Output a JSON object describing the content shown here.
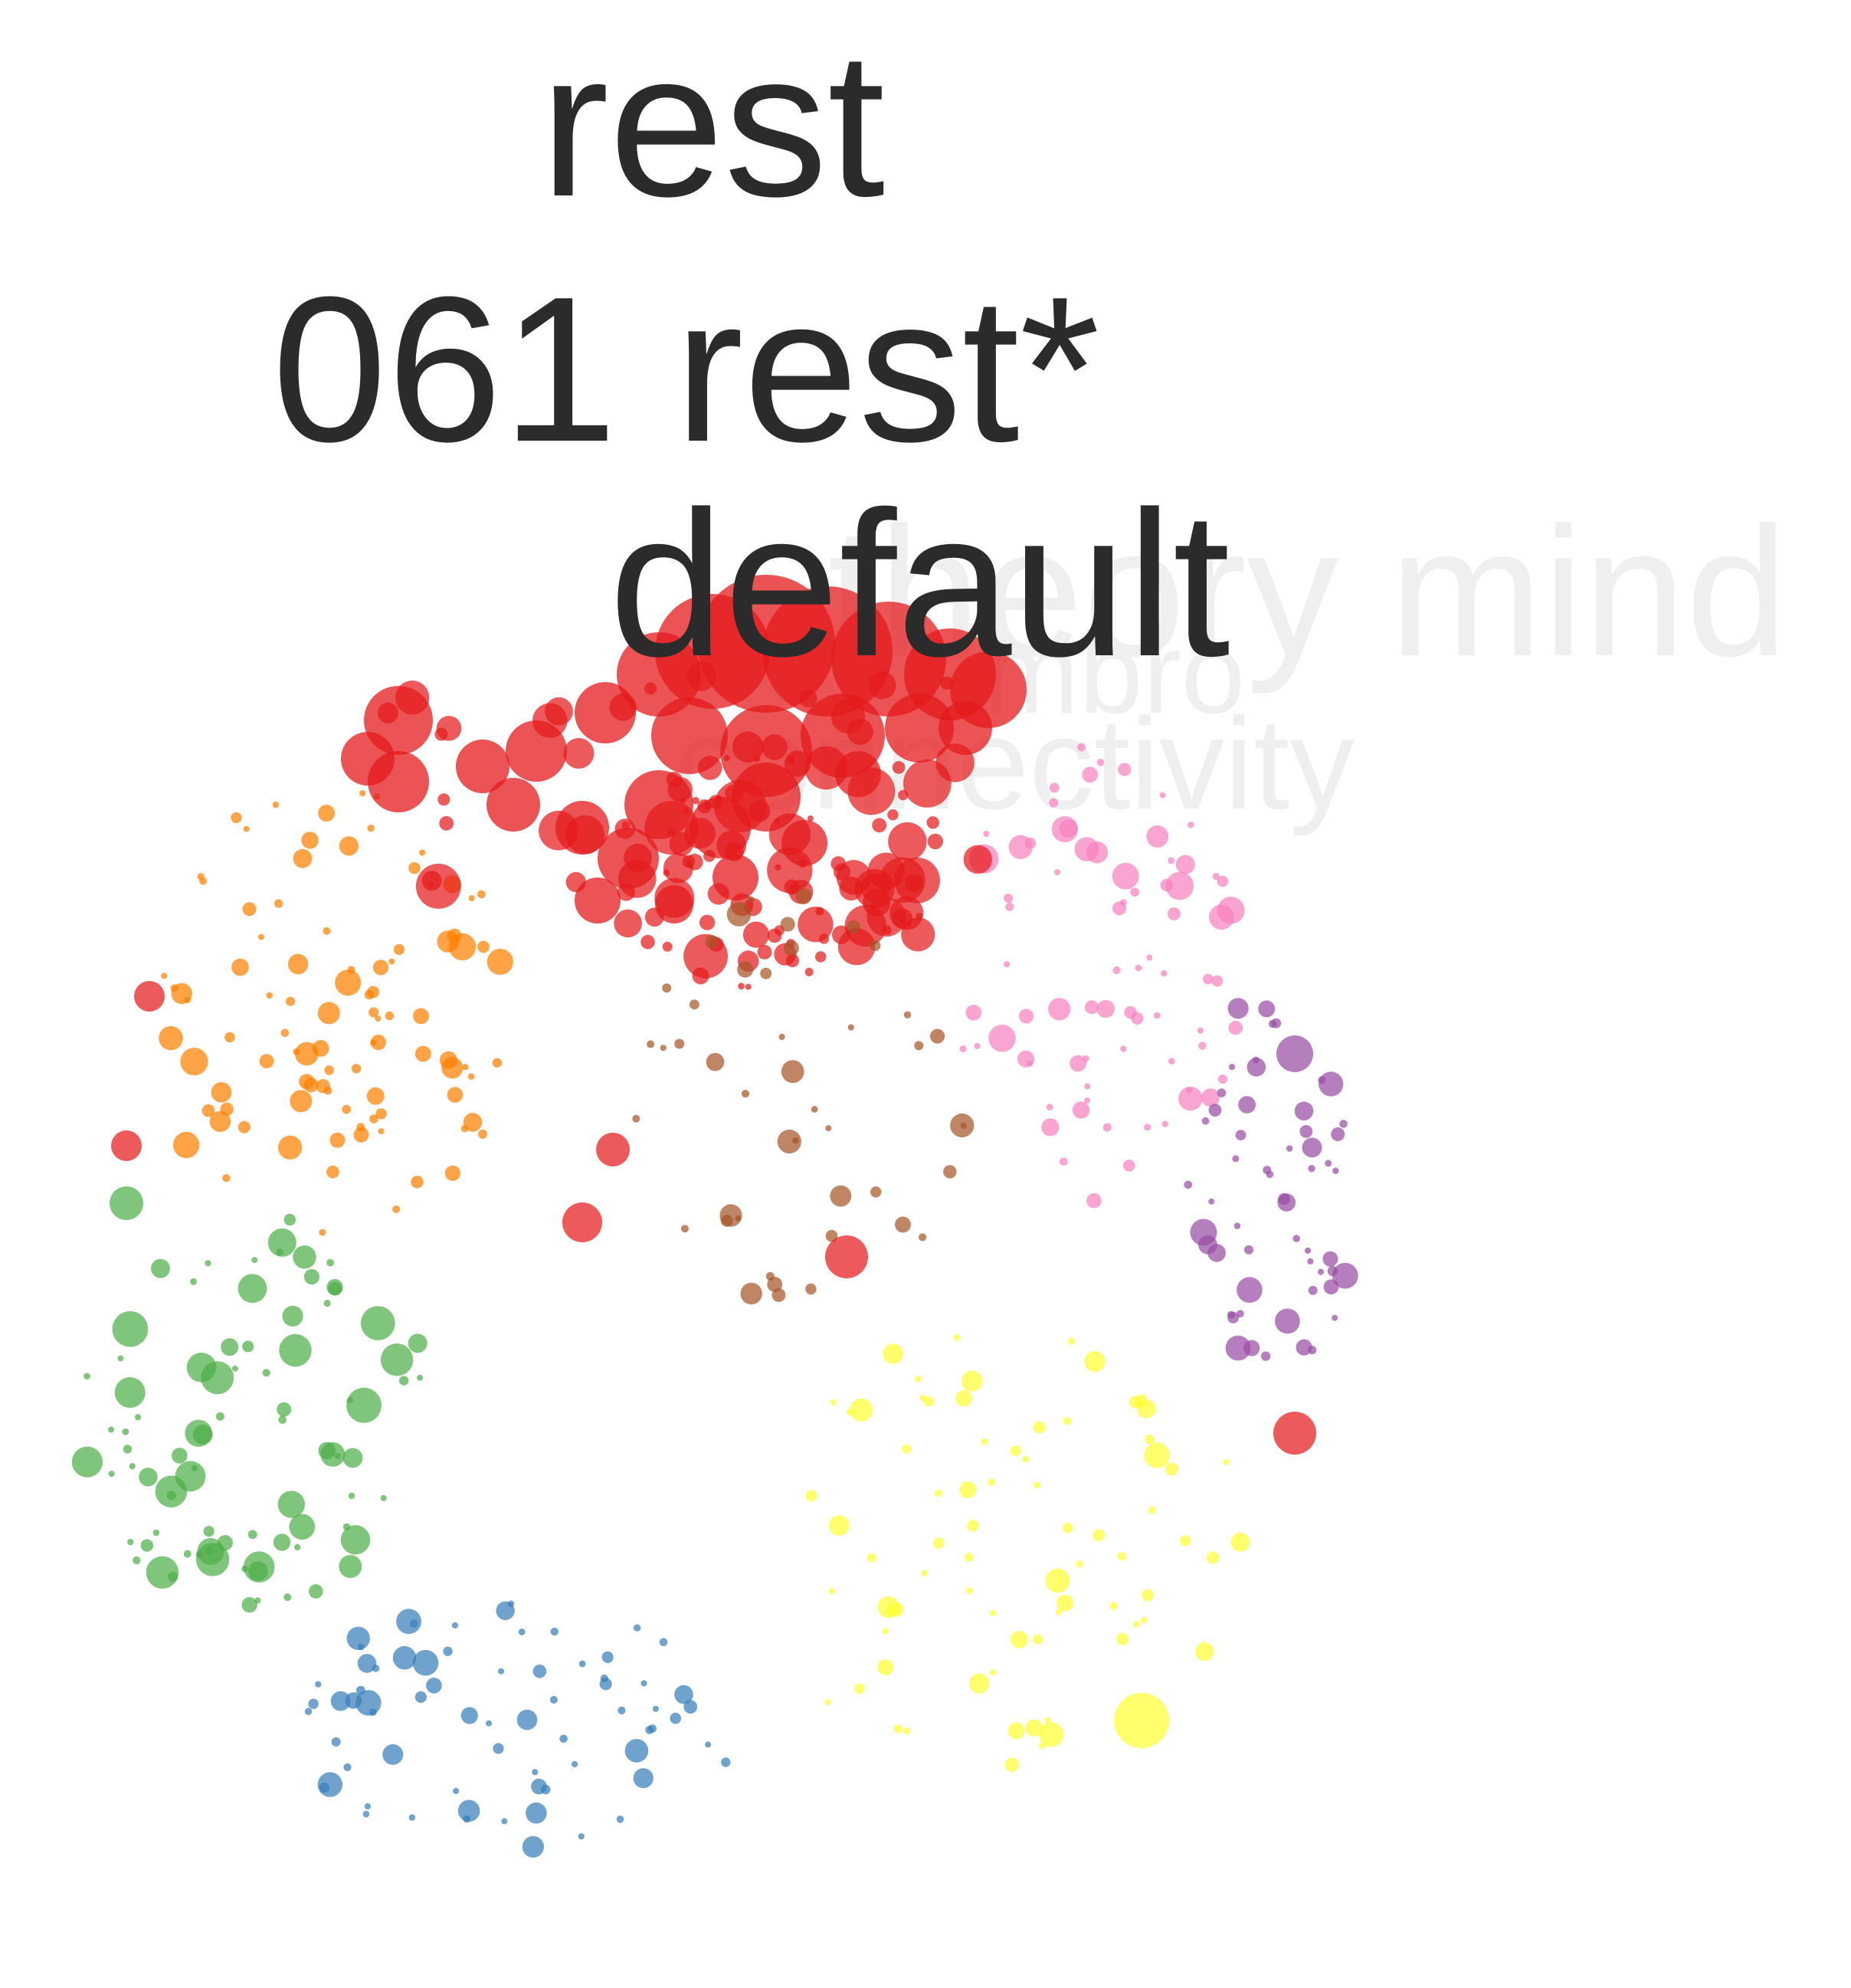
{
  "labels": {
    "top": "rest",
    "middle": "061 rest*",
    "default": "default"
  },
  "watermark": {
    "line1": "theory mind",
    "line2": "embro",
    "line3": "connectivity"
  },
  "colors": {
    "red": "#e41a1c",
    "orange": "#ff7f00",
    "green": "#4daf4a",
    "blue": "#377eb8",
    "yellow": "#ffff33",
    "pink": "#f781bf",
    "purple": "#984ea3",
    "brown": "#a65628",
    "text": "#2b2b2b",
    "watermark": "#000000"
  },
  "clusters": [
    {
      "name": "red",
      "count": 85,
      "seed": 11
    },
    {
      "name": "orange",
      "count": 95,
      "seed": 23
    },
    {
      "name": "green",
      "count": 85,
      "seed": 37
    },
    {
      "name": "blue",
      "count": 70,
      "seed": 41
    },
    {
      "name": "yellow",
      "count": 75,
      "seed": 53
    },
    {
      "name": "pink",
      "count": 75,
      "seed": 67
    },
    {
      "name": "purple",
      "count": 55,
      "seed": 71
    },
    {
      "name": "brown",
      "count": 45,
      "seed": 83
    }
  ]
}
